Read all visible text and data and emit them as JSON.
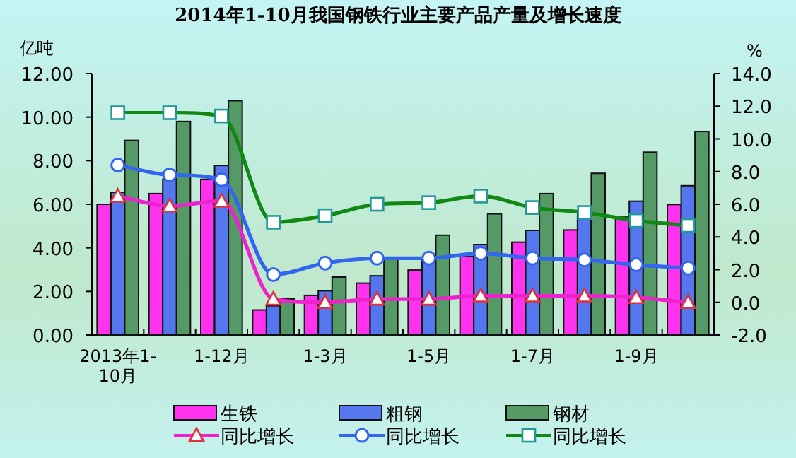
{
  "chart_data": {
    "type": "bar",
    "title": "2014年1-10月我国钢铁行业主要产品产量及增长速度",
    "ylabel": "亿吨",
    "y2label": "%",
    "categories": [
      "2013年1-10月",
      null,
      "1-12月",
      null,
      "1-3月",
      null,
      "1-5月",
      null,
      "1-7月",
      null,
      "1-9月",
      null
    ],
    "series": [
      {
        "name": "生铁",
        "color": "#ff33ee",
        "values": [
          6.0,
          6.49,
          7.14,
          1.15,
          1.82,
          2.38,
          2.98,
          3.61,
          4.26,
          4.82,
          5.41,
          5.99
        ]
      },
      {
        "name": "粗钢",
        "color": "#5577ee",
        "values": [
          6.55,
          7.14,
          7.78,
          1.34,
          2.03,
          2.72,
          3.5,
          4.15,
          4.8,
          5.6,
          6.14,
          6.85
        ]
      },
      {
        "name": "钢材",
        "color": "#559966",
        "values": [
          8.93,
          9.8,
          10.75,
          1.66,
          2.66,
          3.52,
          4.58,
          5.56,
          6.49,
          7.42,
          8.39,
          9.34
        ]
      },
      {
        "name": "同比增长",
        "type": "line",
        "axis": "y2",
        "color": "#ee22cc",
        "marker": "triangle",
        "values": [
          6.5,
          5.9,
          6.2,
          0.2,
          0.0,
          0.2,
          0.2,
          0.4,
          0.4,
          0.4,
          0.3,
          0.0
        ]
      },
      {
        "name": "同比增长",
        "type": "line",
        "axis": "y2",
        "color": "#3366ee",
        "marker": "circle",
        "values": [
          8.4,
          7.8,
          7.5,
          1.7,
          2.4,
          2.7,
          2.7,
          3.0,
          2.7,
          2.6,
          2.3,
          2.1
        ]
      },
      {
        "name": "同比增长",
        "type": "line",
        "axis": "y2",
        "color": "#118811",
        "marker": "square",
        "values": [
          11.6,
          11.6,
          11.4,
          4.9,
          5.3,
          6.0,
          6.1,
          6.5,
          5.8,
          5.5,
          5.0,
          4.7
        ]
      }
    ],
    "ylim": [
      0,
      12
    ],
    "yticks": [
      {
        "value": 0,
        "label": "0.00"
      },
      {
        "value": 2,
        "label": "2.00"
      },
      {
        "value": 4,
        "label": "4.00"
      },
      {
        "value": 6,
        "label": "6.00"
      },
      {
        "value": 8,
        "label": "8.00"
      },
      {
        "value": 10,
        "label": "10.00"
      },
      {
        "value": 12,
        "label": "12.00"
      }
    ],
    "y2lim": [
      -2,
      14
    ],
    "y2ticks": [
      {
        "value": -2,
        "label": "-2.0"
      },
      {
        "value": 0,
        "label": "0.0"
      },
      {
        "value": 2,
        "label": "2.0"
      },
      {
        "value": 4,
        "label": "4.0"
      },
      {
        "value": 6,
        "label": "6.0"
      },
      {
        "value": 8,
        "label": "8.0"
      },
      {
        "value": 10,
        "label": "10.0"
      },
      {
        "value": 12,
        "label": "12.0"
      },
      {
        "value": 14,
        "label": "14.0"
      }
    ],
    "grid": false,
    "legend": "bottom"
  }
}
